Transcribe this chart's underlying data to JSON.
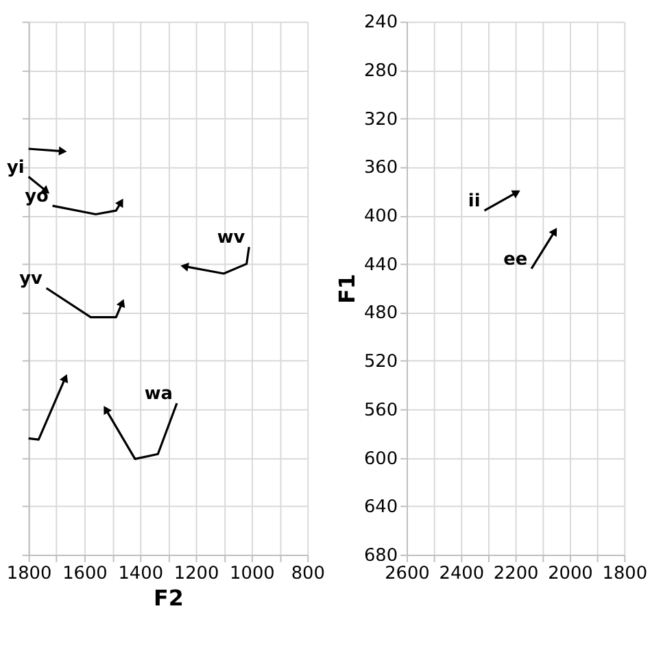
{
  "chart_data": [
    {
      "type": "line",
      "xlabel": "F2",
      "xlim": [
        1800,
        800
      ],
      "ylim": [
        680,
        240
      ],
      "xticks": [
        1800,
        {
          "value": 1700,
          "label": null
        },
        1600,
        {
          "value": 1500,
          "label": null
        },
        1400,
        {
          "value": 1300,
          "label": null
        },
        1200,
        {
          "value": 1100,
          "label": null
        },
        1000,
        {
          "value": 900,
          "label": null
        },
        800
      ],
      "yticks": [
        240,
        280,
        320,
        360,
        400,
        440,
        480,
        520,
        560,
        600,
        640,
        680
      ],
      "tick_labels": "x",
      "grid": true,
      "line_style": "solid",
      "series": [
        {
          "color": "#000000",
          "x": [
            1800,
            1677
          ],
          "values": [
            345,
            347
          ]
        },
        {
          "name": "yi",
          "color": "#000000",
          "x": [
            1800,
            1736
          ],
          "values": [
            368,
            380
          ]
        },
        {
          "name": "yo",
          "color": "#000000",
          "x": [
            1714,
            1559,
            1486,
            1468
          ],
          "values": [
            392,
            399,
            396,
            389
          ]
        },
        {
          "name": "wv",
          "color": "#000000",
          "x": [
            1009,
            1018,
            1100,
            1241
          ],
          "values": [
            426,
            440,
            448,
            442
          ]
        },
        {
          "name": "yv",
          "color": "#000000",
          "x": [
            1736,
            1577,
            1486,
            1464
          ],
          "values": [
            460,
            484,
            484,
            472
          ]
        },
        {
          "color": "#000000",
          "x": [
            1800,
            1764,
            1668
          ],
          "values": [
            584,
            585,
            534
          ]
        },
        {
          "name": "wa",
          "color": "#000000",
          "x": [
            1268,
            1336,
            1418,
            1523
          ],
          "values": [
            555,
            597,
            601,
            560
          ]
        }
      ]
    },
    {
      "type": "line",
      "ylabel": "F1",
      "xlim": [
        2600,
        1800
      ],
      "ylim": [
        680,
        240
      ],
      "xticks": [
        2600,
        {
          "value": 2500,
          "label": null
        },
        2400,
        {
          "value": 2300,
          "label": null
        },
        2200,
        {
          "value": 2100,
          "label": null
        },
        2000,
        {
          "value": 1900,
          "label": null
        },
        1800
      ],
      "yticks": [
        240,
        280,
        320,
        360,
        400,
        440,
        480,
        520,
        560,
        600,
        640,
        680
      ],
      "grid": true,
      "line_style": "solid",
      "series": [
        {
          "name": "ii",
          "color": "#000000",
          "x": [
            2314,
            2195
          ],
          "values": [
            396,
            381
          ]
        },
        {
          "name": "ee",
          "color": "#000000",
          "x": [
            2141,
            2055
          ],
          "values": [
            444,
            413
          ]
        }
      ]
    }
  ]
}
